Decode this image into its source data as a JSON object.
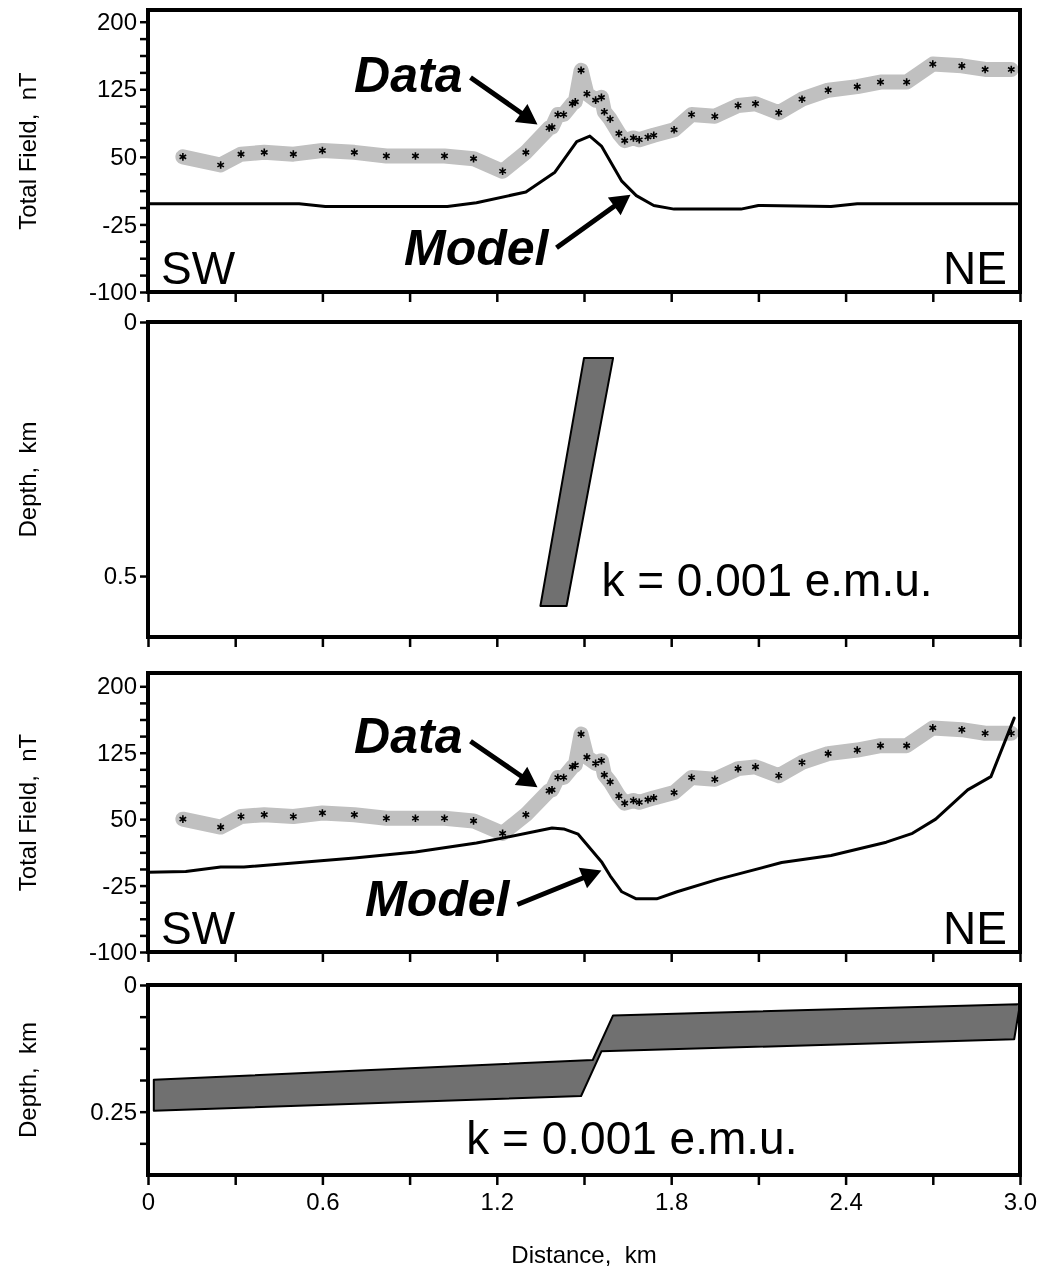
{
  "chart_data": [
    {
      "type": "line",
      "ylabel": "Total Field,  nT",
      "xlim": [
        0,
        3
      ],
      "ylim": [
        -100,
        213
      ],
      "xticks": [
        0,
        0.3,
        0.6,
        0.9,
        1.2,
        1.5,
        1.8,
        2.1,
        2.4,
        2.7,
        3
      ],
      "yticks": [
        -100,
        {
          "value": -81.25,
          "label": null
        },
        {
          "value": -62.5,
          "label": null
        },
        {
          "value": -43.75,
          "label": null
        },
        -25,
        {
          "value": -6.25,
          "label": null
        },
        {
          "value": 12.5,
          "label": null
        },
        {
          "value": 31.25,
          "label": null
        },
        50,
        {
          "value": 68.75,
          "label": null
        },
        {
          "value": 87.5,
          "label": null
        },
        {
          "value": 106.25,
          "label": null
        },
        125,
        {
          "value": 143.75,
          "label": null
        },
        {
          "value": 162.5,
          "label": null
        },
        {
          "value": 181.25,
          "label": null
        },
        200
      ],
      "tick_labels": "y",
      "series": [
        {
          "color": "#c0c0c0",
          "marker": "cross",
          "x": [
            0.12,
            0.25,
            0.32,
            0.4,
            0.5,
            0.6,
            0.71,
            0.82,
            0.92,
            1.02,
            1.12,
            1.22,
            1.3,
            1.38,
            1.39,
            1.41,
            1.43,
            1.46,
            1.47,
            1.49,
            1.51,
            1.54,
            1.56,
            1.57,
            1.59,
            1.62,
            1.64,
            1.67,
            1.69,
            1.72,
            1.74,
            1.81,
            1.87,
            1.95,
            2.03,
            2.09,
            2.17,
            2.25,
            2.34,
            2.44,
            2.52,
            2.61,
            2.7,
            2.8,
            2.88,
            2.97
          ],
          "values": [
            50,
            41,
            53,
            55,
            53,
            57,
            55,
            51,
            51,
            51,
            48,
            34,
            55,
            82,
            83,
            97,
            97,
            109,
            111,
            146,
            120,
            113,
            116,
            100,
            92,
            76,
            68,
            71,
            69,
            72,
            74,
            80,
            97,
            95,
            107,
            109,
            99,
            114,
            124,
            128,
            133,
            133,
            153,
            151,
            147,
            147
          ]
        },
        {
          "color": "#000000",
          "x": [
            0,
            0.52,
            0.61,
            1.03,
            1.13,
            1.3,
            1.4,
            1.475,
            1.52,
            1.56,
            1.63,
            1.68,
            1.74,
            1.81,
            2.04,
            2.1,
            2.35,
            2.44,
            2.99
          ],
          "values": [
            -2,
            -2,
            -5,
            -5,
            -1,
            11,
            33,
            67,
            73,
            62,
            23,
            7,
            -4,
            -8,
            -8,
            -4,
            -5,
            -2,
            -2
          ]
        }
      ],
      "annotations": [
        {
          "text": "Data",
          "x": 1.34,
          "y": 86
        },
        {
          "text": "Model",
          "x": 1.66,
          "y": 8
        },
        "SW",
        "NE"
      ]
    },
    {
      "type": "area",
      "ylabel": "Depth,  km",
      "xlim": [
        0,
        3
      ],
      "ylim": [
        0.62,
        0
      ],
      "xticks": [
        0,
        0.3,
        0.6,
        0.9,
        1.2,
        1.5,
        1.8,
        2.1,
        2.4,
        2.7,
        3
      ],
      "yticks": [
        0,
        0.5
      ],
      "tick_labels": "y",
      "series": [
        {
          "color": "#707070",
          "x": [
            1.35,
            1.44,
            1.6,
            1.5
          ],
          "values": [
            0.559,
            0.559,
            0.071,
            0.071
          ]
        }
      ],
      "annotations": [
        "k = 0.001 e.m.u."
      ]
    },
    {
      "type": "line",
      "ylabel": "Total Field,  nT",
      "xlim": [
        0,
        3
      ],
      "ylim": [
        -100,
        215
      ],
      "xticks": [
        0,
        0.3,
        0.6,
        0.9,
        1.2,
        1.5,
        1.8,
        2.1,
        2.4,
        2.7,
        3
      ],
      "yticks": [
        -100,
        {
          "value": -81.25,
          "label": null
        },
        {
          "value": -62.5,
          "label": null
        },
        {
          "value": -43.75,
          "label": null
        },
        -25,
        {
          "value": -6.25,
          "label": null
        },
        {
          "value": 12.5,
          "label": null
        },
        {
          "value": 31.25,
          "label": null
        },
        50,
        {
          "value": 68.75,
          "label": null
        },
        {
          "value": 87.5,
          "label": null
        },
        {
          "value": 106.25,
          "label": null
        },
        125,
        {
          "value": 143.75,
          "label": null
        },
        {
          "value": 162.5,
          "label": null
        },
        {
          "value": 181.25,
          "label": null
        },
        200
      ],
      "tick_labels": "y",
      "series": [
        {
          "color": "#c0c0c0",
          "marker": "cross",
          "x": [
            0.12,
            0.25,
            0.32,
            0.4,
            0.5,
            0.6,
            0.71,
            0.82,
            0.92,
            1.02,
            1.12,
            1.22,
            1.3,
            1.38,
            1.39,
            1.41,
            1.43,
            1.46,
            1.47,
            1.49,
            1.51,
            1.54,
            1.56,
            1.57,
            1.59,
            1.62,
            1.64,
            1.67,
            1.69,
            1.72,
            1.74,
            1.81,
            1.87,
            1.95,
            2.03,
            2.09,
            2.17,
            2.25,
            2.34,
            2.44,
            2.52,
            2.61,
            2.7,
            2.8,
            2.88,
            2.97
          ],
          "values": [
            50,
            41,
            53,
            55,
            53,
            57,
            55,
            51,
            51,
            51,
            48,
            34,
            55,
            82,
            83,
            97,
            97,
            109,
            111,
            146,
            120,
            113,
            116,
            100,
            92,
            76,
            68,
            71,
            69,
            72,
            74,
            80,
            97,
            95,
            107,
            109,
            99,
            114,
            124,
            128,
            133,
            133,
            153,
            151,
            147,
            147
          ]
        },
        {
          "color": "#000000",
          "x": [
            0,
            0.13,
            0.25,
            0.33,
            0.71,
            0.92,
            1.13,
            1.21,
            1.39,
            1.43,
            1.48,
            1.56,
            1.59,
            1.63,
            1.68,
            1.75,
            1.82,
            1.96,
            2.18,
            2.35,
            2.54,
            2.63,
            2.71,
            2.82,
            2.9,
            2.98
          ],
          "values": [
            -10,
            -9,
            -4,
            -4,
            6,
            13,
            23,
            28,
            40,
            39,
            33,
            2,
            -14,
            -32,
            -40,
            -40,
            -32,
            -18,
            1,
            9,
            24,
            34,
            50,
            83,
            98,
            164
          ]
        }
      ],
      "annotations": [
        {
          "text": "Data",
          "x": 1.34,
          "y": 86
        },
        {
          "text": "Model",
          "x": 1.56,
          "y": -8
        },
        "SW",
        "NE"
      ]
    },
    {
      "type": "area",
      "xlabel": "Distance,  km",
      "ylabel": "Depth,  km",
      "xlim": [
        0,
        3
      ],
      "ylim": [
        0.375,
        0
      ],
      "xticks": [
        0,
        {
          "value": 0.3,
          "label": null
        },
        0.6,
        {
          "value": 0.9,
          "label": null
        },
        1.2,
        {
          "value": 1.5,
          "label": null
        },
        1.8,
        {
          "value": 2.1,
          "label": null
        },
        2.4,
        {
          "value": 2.7,
          "label": null
        },
        {
          "value": 3,
          "label": "3.0"
        }
      ],
      "yticks": [
        0,
        {
          "value": 0.0625,
          "label": null
        },
        {
          "value": 0.125,
          "label": null
        },
        {
          "value": 0.1875,
          "label": null
        },
        0.25,
        {
          "value": 0.3125,
          "label": null
        }
      ],
      "series": [
        {
          "color": "#707070",
          "x": [
            0.02,
            1.53,
            1.6,
            3.0,
            2.98,
            1.56,
            1.49,
            0.02
          ],
          "values": [
            0.187,
            0.148,
            0.06,
            0.038,
            0.107,
            0.131,
            0.219,
            0.248
          ]
        }
      ],
      "annotations": [
        "k = 0.001 e.m.u."
      ]
    }
  ]
}
